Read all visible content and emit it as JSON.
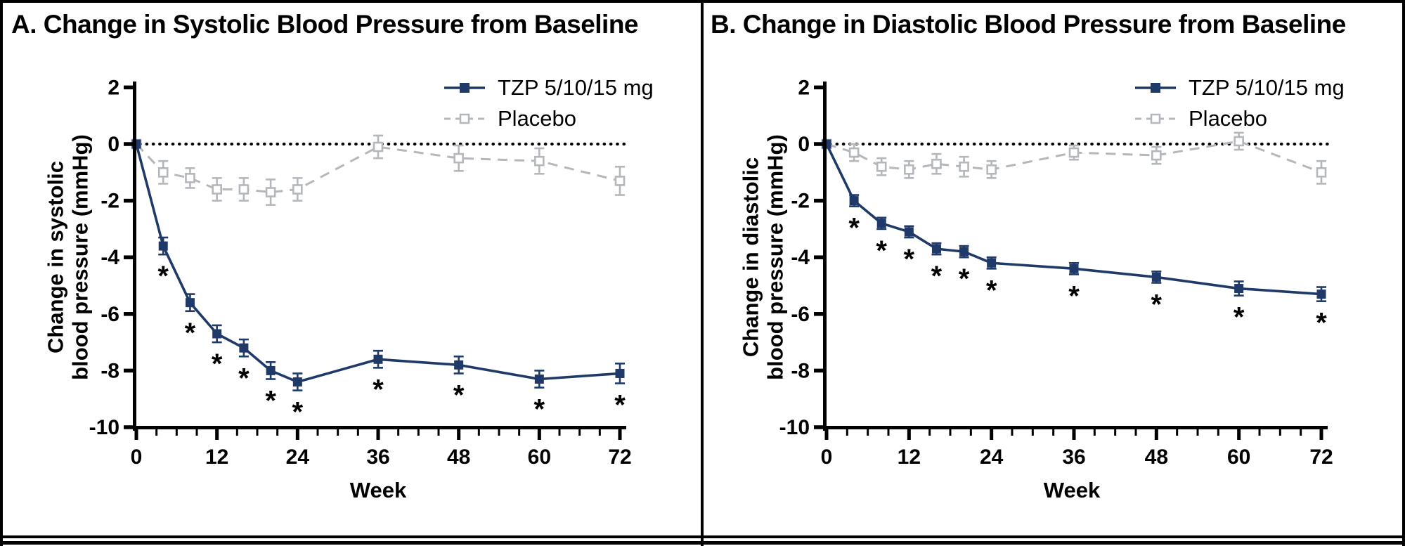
{
  "colors": {
    "tzp": "#1f3a68",
    "placebo": "#b4b7bb",
    "axis": "#000000",
    "background": "#ffffff"
  },
  "legend": {
    "tzp_label": "TZP 5/10/15 mg",
    "placebo_label": "Placebo"
  },
  "chart_data": [
    {
      "type": "line",
      "panel": "A",
      "title": "A. Change in Systolic Blood Pressure from Baseline",
      "ylabel_line1": "Change in systolic",
      "ylabel_line2": "blood pressure (mmHg)",
      "xlabel": "Week",
      "xlim": [
        0,
        72
      ],
      "ylim": [
        -10,
        2
      ],
      "xticks_major": [
        0,
        12,
        24,
        36,
        48,
        60,
        72
      ],
      "xtick_minor_step": 3,
      "yticks": [
        2,
        0,
        -2,
        -4,
        -6,
        -8,
        -10
      ],
      "zero_reference_line": true,
      "grid": false,
      "legend_position": "top-right",
      "x": [
        0,
        4,
        8,
        12,
        16,
        20,
        24,
        36,
        48,
        60,
        72
      ],
      "series": [
        {
          "name": "Placebo",
          "style": "dashed-open-square",
          "color_key": "placebo",
          "values": [
            0,
            -1.0,
            -1.2,
            -1.6,
            -1.6,
            -1.7,
            -1.6,
            -0.1,
            -0.5,
            -0.6,
            -1.3
          ],
          "errors": [
            0,
            0.4,
            0.35,
            0.4,
            0.4,
            0.45,
            0.4,
            0.4,
            0.45,
            0.45,
            0.5
          ],
          "significant": [
            false,
            false,
            false,
            false,
            false,
            false,
            false,
            false,
            false,
            false,
            false
          ]
        },
        {
          "name": "TZP 5/10/15 mg",
          "style": "solid-filled-square",
          "color_key": "tzp",
          "values": [
            0,
            -3.6,
            -5.6,
            -6.7,
            -7.2,
            -8.0,
            -8.4,
            -7.6,
            -7.8,
            -8.3,
            -8.1
          ],
          "errors": [
            0,
            0.3,
            0.3,
            0.3,
            0.3,
            0.3,
            0.3,
            0.3,
            0.3,
            0.3,
            0.35
          ],
          "significant": [
            false,
            true,
            true,
            true,
            true,
            true,
            true,
            true,
            true,
            true,
            true
          ]
        }
      ]
    },
    {
      "type": "line",
      "panel": "B",
      "title": "B. Change in Diastolic Blood Pressure from Baseline",
      "ylabel_line1": "Change in diastolic",
      "ylabel_line2": "blood pressure (mmHg)",
      "xlabel": "Week",
      "xlim": [
        0,
        72
      ],
      "ylim": [
        -10,
        2
      ],
      "xticks_major": [
        0,
        12,
        24,
        36,
        48,
        60,
        72
      ],
      "xtick_minor_step": 3,
      "yticks": [
        2,
        0,
        -2,
        -4,
        -6,
        -8,
        -10
      ],
      "zero_reference_line": true,
      "grid": false,
      "legend_position": "top-right",
      "x": [
        0,
        4,
        8,
        12,
        16,
        20,
        24,
        36,
        48,
        60,
        72
      ],
      "series": [
        {
          "name": "Placebo",
          "style": "dashed-open-square",
          "color_key": "placebo",
          "values": [
            0,
            -0.3,
            -0.8,
            -0.9,
            -0.7,
            -0.8,
            -0.9,
            -0.3,
            -0.4,
            0.1,
            -1.0
          ],
          "errors": [
            0,
            0.3,
            0.3,
            0.3,
            0.35,
            0.35,
            0.3,
            0.25,
            0.3,
            0.3,
            0.4
          ],
          "significant": [
            false,
            false,
            false,
            false,
            false,
            false,
            false,
            false,
            false,
            false,
            false
          ]
        },
        {
          "name": "TZP 5/10/15 mg",
          "style": "solid-filled-square",
          "color_key": "tzp",
          "values": [
            0,
            -2.0,
            -2.8,
            -3.1,
            -3.7,
            -3.8,
            -4.2,
            -4.4,
            -4.7,
            -5.1,
            -5.3
          ],
          "errors": [
            0,
            0.2,
            0.2,
            0.2,
            0.2,
            0.2,
            0.2,
            0.2,
            0.2,
            0.25,
            0.25
          ],
          "significant": [
            false,
            true,
            true,
            true,
            true,
            true,
            true,
            true,
            true,
            true,
            true
          ]
        }
      ]
    }
  ]
}
